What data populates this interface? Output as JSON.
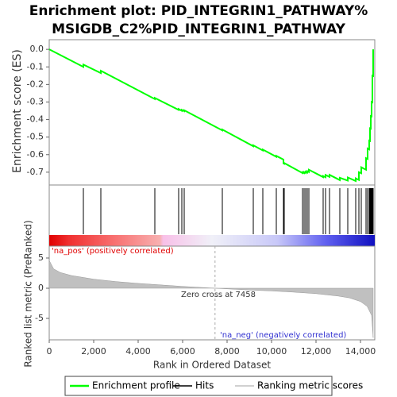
{
  "chart_data": [
    {
      "type": "line",
      "title": [
        "Enrichment plot: PID_INTEGRIN1_PATHWAY%",
        "MSIGDB_C2%PID_INTEGRIN1_PATHWAY"
      ],
      "ylabel": "Enrichment score (ES)",
      "xlim": [
        0,
        14643
      ],
      "ylim": [
        -0.773,
        0.055
      ],
      "yticks": [
        {
          "value": 0,
          "label": "0.0"
        },
        -0.1,
        -0.2,
        -0.3,
        -0.4,
        -0.5,
        -0.6,
        -0.7
      ],
      "x": [
        0,
        1536,
        1536,
        2321,
        2321,
        4750,
        4750,
        5821,
        5821,
        5964,
        5964,
        6071,
        6071,
        7786,
        7786,
        9179,
        9179,
        9607,
        9607,
        10214,
        10214,
        10536,
        10536,
        10571,
        10571,
        11393,
        11393,
        11464,
        11464,
        11536,
        11536,
        11607,
        11607,
        11679,
        11679,
        12321,
        12321,
        12429,
        12429,
        12607,
        12607,
        13071,
        13071,
        13429,
        13429,
        13786,
        13786,
        13929,
        13929,
        14036,
        14036,
        14250,
        14250,
        14321,
        14321,
        14393,
        14393,
        14429,
        14429,
        14464,
        14464,
        14500,
        14500,
        14536,
        14536,
        14571,
        14571
      ],
      "series": [
        {
          "name": "Enrichment profile",
          "color": "#00ff00",
          "values": [
            0,
            -0.1,
            -0.087,
            -0.135,
            -0.122,
            -0.283,
            -0.277,
            -0.345,
            -0.34,
            -0.35,
            -0.345,
            -0.352,
            -0.347,
            -0.462,
            -0.457,
            -0.552,
            -0.547,
            -0.576,
            -0.571,
            -0.612,
            -0.607,
            -0.628,
            -0.65,
            -0.652,
            -0.648,
            -0.705,
            -0.7,
            -0.705,
            -0.699,
            -0.704,
            -0.697,
            -0.702,
            -0.694,
            -0.699,
            -0.686,
            -0.728,
            -0.722,
            -0.729,
            -0.716,
            -0.727,
            -0.715,
            -0.745,
            -0.732,
            -0.748,
            -0.73,
            -0.75,
            -0.735,
            -0.744,
            -0.7,
            -0.706,
            -0.672,
            -0.686,
            -0.62,
            -0.625,
            -0.565,
            -0.57,
            -0.52,
            -0.522,
            -0.45,
            -0.452,
            -0.38,
            -0.382,
            -0.3,
            -0.302,
            -0.15,
            -0.152,
            0.0
          ]
        }
      ]
    },
    {
      "type": "rug",
      "xlim": [
        0,
        14643
      ],
      "series": [
        {
          "name": "Hits",
          "color": "#000000",
          "x": [
            1536,
            2321,
            4750,
            5821,
            5964,
            6071,
            7786,
            9179,
            9607,
            10214,
            10536,
            10571,
            11393,
            11464,
            11536,
            11607,
            11679,
            12321,
            12429,
            12607,
            13071,
            13429,
            13786,
            13929,
            14036,
            14250,
            14321,
            14393,
            14429,
            14464,
            14500,
            14536,
            14571
          ]
        }
      ]
    },
    {
      "type": "area",
      "ylabel": "Ranked list metric (PreRanked)",
      "xlabel": "Rank in Ordered Dataset",
      "xlim": [
        0,
        14643
      ],
      "ylim": [
        -8.55,
        6.97
      ],
      "xticks": [
        0,
        {
          "value": 2000,
          "label": "2,000"
        },
        {
          "value": 4000,
          "label": "4,000"
        },
        {
          "value": 6000,
          "label": "6,000"
        },
        {
          "value": 8000,
          "label": "8,000"
        },
        {
          "value": 10000,
          "label": "10,000"
        },
        {
          "value": 12000,
          "label": "12,000"
        },
        {
          "value": 14000,
          "label": "14,000"
        }
      ],
      "yticks": [
        5,
        0,
        -5
      ],
      "x": [
        0,
        200,
        500,
        1000,
        2000,
        3000,
        4000,
        5000,
        6000,
        7458,
        9000,
        10000,
        11000,
        12000,
        13000,
        13500,
        14000,
        14300,
        14500,
        14571
      ],
      "series": [
        {
          "name": "Ranking metric scores",
          "color": "#c0c0c0",
          "values": [
            4.6,
            3.2,
            2.6,
            2.1,
            1.5,
            1.1,
            0.8,
            0.55,
            0.3,
            0,
            -0.3,
            -0.45,
            -0.65,
            -0.9,
            -1.3,
            -1.6,
            -2.2,
            -3.0,
            -4.5,
            -8.2
          ]
        }
      ],
      "zero_cross": 7458,
      "annotations": [
        "'na_pos' (positively correlated)",
        "Zero cross at 7458",
        "'na_neg' (negatively correlated)"
      ]
    }
  ]
}
